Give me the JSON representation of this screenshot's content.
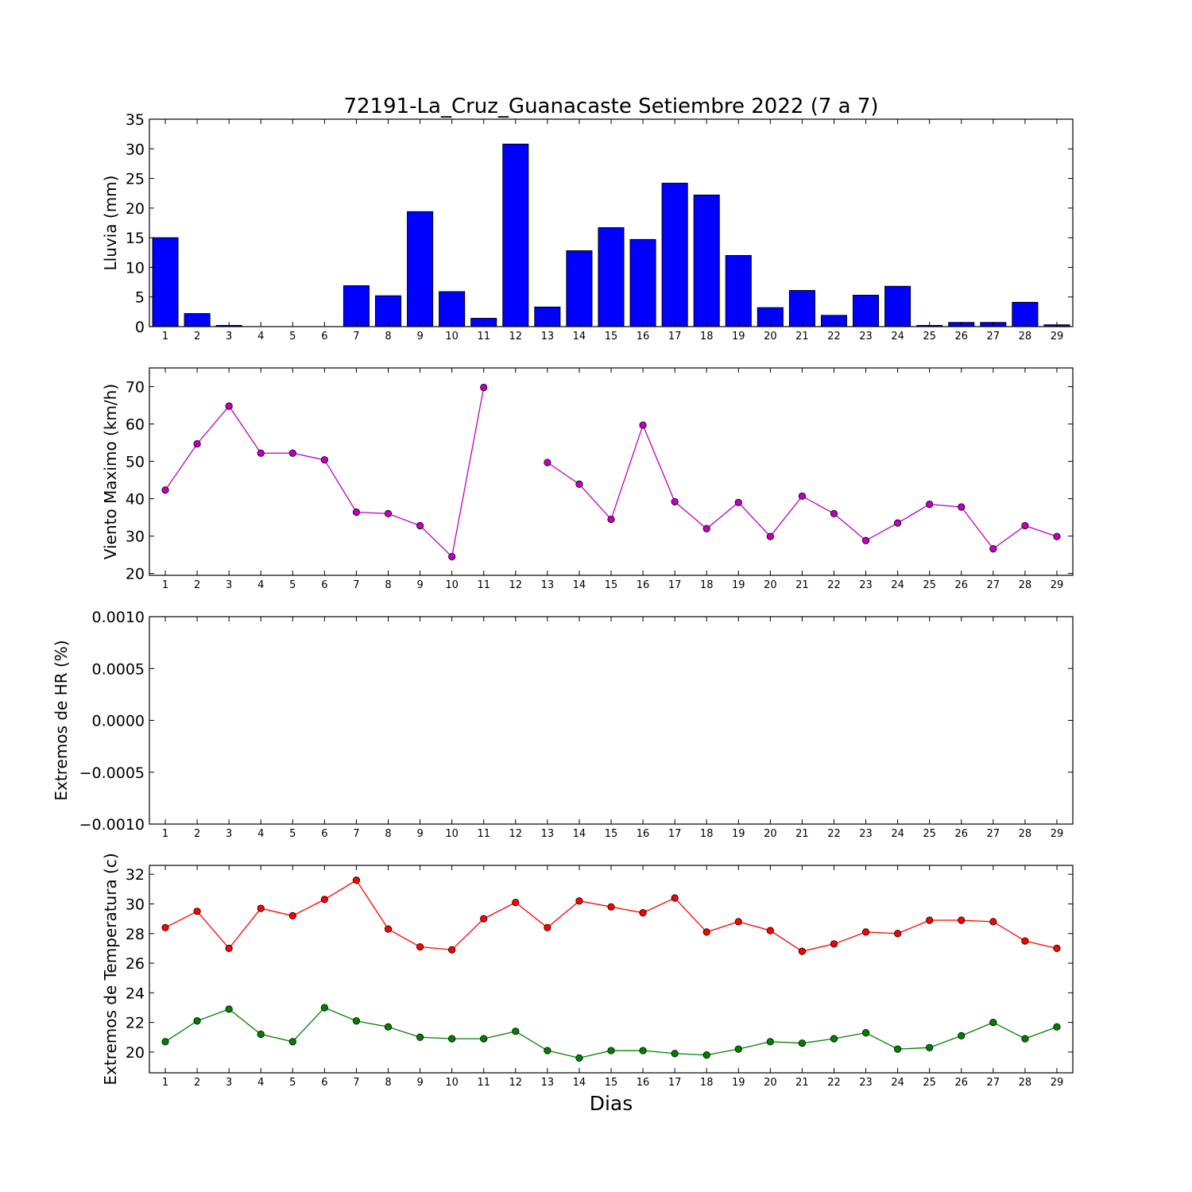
{
  "chart_data": [
    {
      "id": "lluvia",
      "type": "bar",
      "title": "72191-La_Cruz_Guanacaste Setiembre 2022  (7 a 7)",
      "ylabel": "Lluvia (mm)",
      "ylim": [
        0,
        35
      ],
      "yticks": [
        0,
        5,
        10,
        15,
        20,
        25,
        30,
        35
      ],
      "categories": [
        "1",
        "2",
        "3",
        "4",
        "5",
        "6",
        "7",
        "8",
        "9",
        "10",
        "11",
        "12",
        "13",
        "14",
        "15",
        "16",
        "17",
        "18",
        "19",
        "20",
        "21",
        "22",
        "23",
        "24",
        "25",
        "26",
        "27",
        "28",
        "29"
      ],
      "values": [
        15.0,
        2.2,
        0.2,
        0.0,
        0.0,
        0.0,
        6.9,
        5.2,
        19.4,
        5.9,
        1.4,
        30.8,
        3.3,
        12.8,
        16.7,
        14.7,
        24.2,
        22.2,
        12.0,
        3.2,
        6.1,
        1.9,
        5.3,
        6.8,
        0.2,
        0.7,
        0.7,
        4.1,
        0.3
      ],
      "color": "#0000ff"
    },
    {
      "id": "viento",
      "type": "line",
      "ylabel": "Viento Maximo (km/h)",
      "ylim": [
        19.5,
        75
      ],
      "yticks": [
        20,
        30,
        40,
        50,
        60,
        70
      ],
      "categories": [
        "1",
        "2",
        "3",
        "4",
        "5",
        "6",
        "7",
        "8",
        "9",
        "10",
        "11",
        "12",
        "13",
        "14",
        "15",
        "16",
        "17",
        "18",
        "19",
        "20",
        "21",
        "22",
        "23",
        "24",
        "25",
        "26",
        "27",
        "28",
        "29"
      ],
      "series": [
        {
          "values": [
            42.3,
            54.7,
            64.8,
            52.2,
            52.2,
            50.4,
            36.4,
            36.0,
            32.8,
            24.5,
            69.8,
            null,
            49.7,
            43.9,
            34.5,
            59.7,
            39.2,
            32.0,
            39.0,
            29.9,
            40.7,
            36.0,
            28.8,
            33.5,
            38.5,
            37.8,
            26.6,
            32.8,
            29.9
          ],
          "color": "#bf00bf"
        }
      ]
    },
    {
      "id": "hr",
      "type": "line",
      "ylabel": "Extremos de HR (%)",
      "ylim": [
        -0.001,
        0.001
      ],
      "yticks": [
        -0.001,
        -0.0005,
        0.0,
        0.0005,
        0.001
      ],
      "ytick_labels": [
        "−0.0010",
        "−0.0005",
        "0.0000",
        "0.0005",
        "0.0010"
      ],
      "categories": [
        "1",
        "2",
        "3",
        "4",
        "5",
        "6",
        "7",
        "8",
        "9",
        "10",
        "11",
        "12",
        "13",
        "14",
        "15",
        "16",
        "17",
        "18",
        "19",
        "20",
        "21",
        "22",
        "23",
        "24",
        "25",
        "26",
        "27",
        "28",
        "29"
      ],
      "series": []
    },
    {
      "id": "temperatura",
      "type": "line",
      "ylabel": "Extremos de Temperatura (c)",
      "xlabel": "Dias",
      "ylim": [
        18.6,
        32.6
      ],
      "yticks": [
        20,
        22,
        24,
        26,
        28,
        30,
        32
      ],
      "categories": [
        "1",
        "2",
        "3",
        "4",
        "5",
        "6",
        "7",
        "8",
        "9",
        "10",
        "11",
        "12",
        "13",
        "14",
        "15",
        "16",
        "17",
        "18",
        "19",
        "20",
        "21",
        "22",
        "23",
        "24",
        "25",
        "26",
        "27",
        "28",
        "29"
      ],
      "series": [
        {
          "values": [
            28.4,
            29.5,
            27.0,
            29.7,
            29.2,
            30.3,
            31.6,
            28.3,
            27.1,
            26.9,
            29.0,
            30.1,
            28.4,
            30.2,
            29.8,
            29.4,
            30.4,
            28.1,
            28.8,
            28.2,
            26.8,
            27.3,
            28.1,
            28.0,
            28.9,
            28.9,
            28.8,
            27.5,
            27.0
          ],
          "color": "#ff0000"
        },
        {
          "values": [
            20.7,
            22.1,
            22.9,
            21.2,
            20.7,
            23.0,
            22.1,
            21.7,
            21.0,
            20.9,
            20.9,
            21.4,
            20.1,
            19.6,
            20.1,
            20.1,
            19.9,
            19.8,
            20.2,
            20.7,
            20.6,
            20.9,
            21.3,
            20.2,
            20.3,
            21.1,
            22.0,
            20.9,
            21.7
          ],
          "color": "#008000"
        }
      ]
    }
  ]
}
